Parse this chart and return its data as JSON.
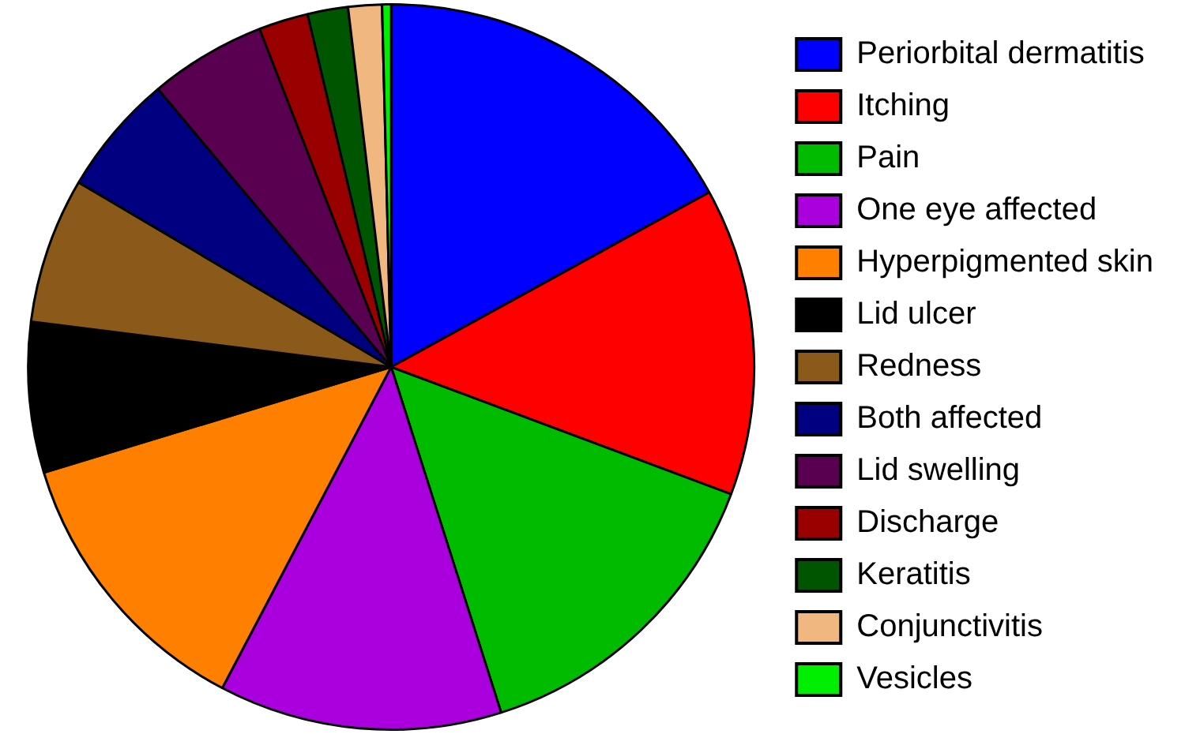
{
  "chart_data": {
    "type": "pie",
    "categories": [
      "Periorbital dermatitis",
      "Itching",
      "Pain",
      "One eye affected",
      "Hyperpigmented skin",
      "Lid ulcer",
      "Redness",
      "Both affected",
      "Lid swelling",
      "Discharge",
      "Keratitis",
      "Conjunctivitis",
      "Vesicles"
    ],
    "values": [
      17,
      13.7,
      14.4,
      12.6,
      12.6,
      6.7,
      6.5,
      5.4,
      5.2,
      2.2,
      1.8,
      1.5,
      0.4
    ],
    "colors": [
      "#0000ff",
      "#ff0000",
      "#00bb00",
      "#aa00dd",
      "#ff8000",
      "#000000",
      "#8b5a1a",
      "#000080",
      "#5a0050",
      "#990000",
      "#005500",
      "#f0b880",
      "#00ee00"
    ],
    "legend": "right"
  }
}
